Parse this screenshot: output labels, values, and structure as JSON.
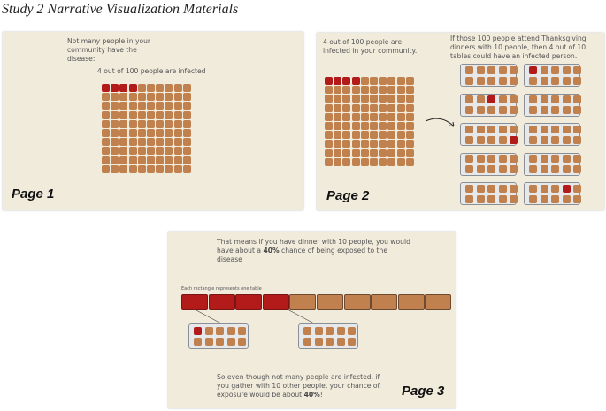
{
  "title": "Study 2 Narrative Visualization Materials",
  "colors": {
    "healthy": "#c0814f",
    "infected": "#b31b1b",
    "panel": "#f1ebdc"
  },
  "page1": {
    "intro": "Not many people in your community have the disease:",
    "caption": "4 out of 100 people are infected",
    "label": "Page 1",
    "total": 100,
    "infected": 4
  },
  "page2": {
    "left_text": "4 out of 100 people are infected in your community.",
    "right_text": "If those 100 people attend Thanksgiving dinners with 10 people, then 4 out of 10 tables could have an infected person.",
    "label": "Page 2",
    "infected_seats": [
      [
        1,
        0
      ],
      [
        2,
        2
      ],
      [
        4,
        9
      ],
      [
        9,
        3
      ]
    ]
  },
  "page3": {
    "top_text_1": "That means if you have dinner with 10 people, you would have about a ",
    "top_pct": "40%",
    "top_text_2": " chance of being exposed to the disease",
    "bar_caption": "Each rectangle represents one table",
    "tables": 10,
    "infected_tables": 4,
    "bottom_text_1": "So even though not many people are infected, if you gather with 10 other people, your chance of exposure would be about ",
    "bottom_pct": "40%",
    "bottom_text_2": "!",
    "label": "Page 3"
  }
}
